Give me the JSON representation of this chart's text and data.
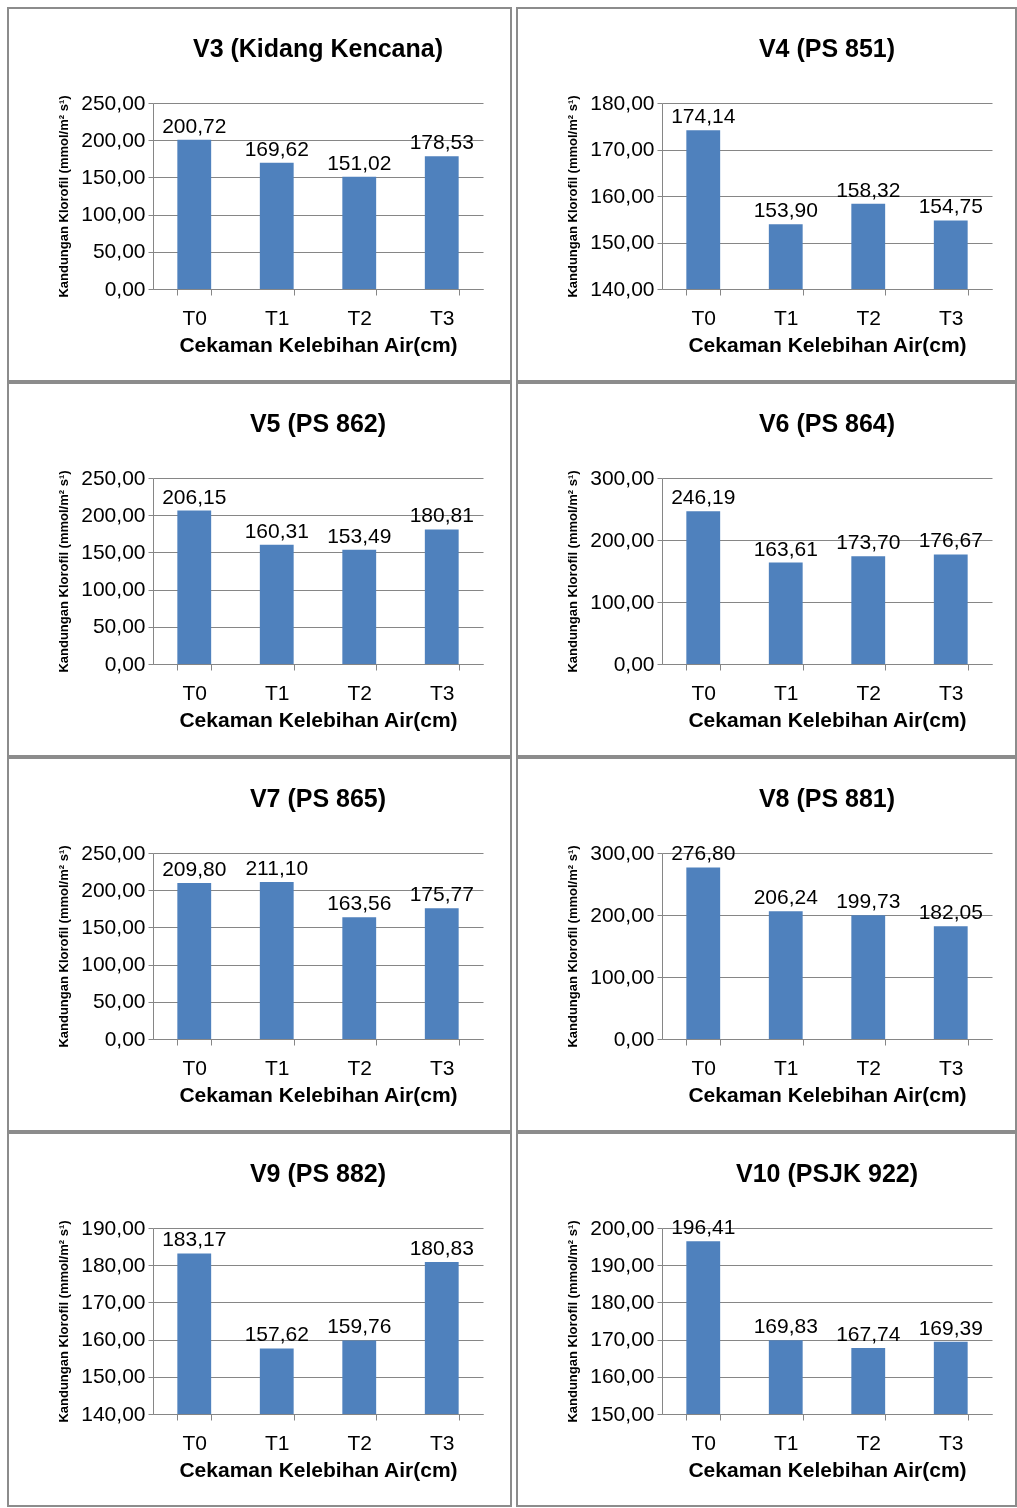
{
  "chart_data": [
    {
      "type": "bar",
      "title": "V3 (Kidang Kencana)",
      "xlabel": "Cekaman Kelebihan Air(cm)",
      "ylabel": "Kandungan Klorofil (mmol/m² s¹)",
      "categories": [
        "T0",
        "T1",
        "T2",
        "T3"
      ],
      "values": [
        200.72,
        169.62,
        151.02,
        178.53
      ],
      "value_labels": [
        "200,72",
        "169,62",
        "151,02",
        "178,53"
      ],
      "color": "#4f81bd",
      "ylim": [
        0,
        250
      ],
      "yticks": [
        {
          "value": 0,
          "label": "0,00"
        },
        {
          "value": 50,
          "label": "50,00"
        },
        {
          "value": 100,
          "label": "100,00"
        },
        {
          "value": 150,
          "label": "150,00"
        },
        {
          "value": 200,
          "label": "200,00"
        },
        {
          "value": 250,
          "label": "250,00"
        }
      ],
      "grid": "y"
    },
    {
      "type": "bar",
      "title": "V4 (PS 851)",
      "xlabel": "Cekaman Kelebihan Air(cm)",
      "ylabel": "Kandungan Klorofil (mmol/m² s¹)",
      "categories": [
        "T0",
        "T1",
        "T2",
        "T3"
      ],
      "values": [
        174.14,
        153.9,
        158.32,
        154.75
      ],
      "value_labels": [
        "174,14",
        "153,90",
        "158,32",
        "154,75"
      ],
      "color": "#4f81bd",
      "ylim": [
        140,
        180
      ],
      "yticks": [
        {
          "value": 140,
          "label": "140,00"
        },
        {
          "value": 150,
          "label": "150,00"
        },
        {
          "value": 160,
          "label": "160,00"
        },
        {
          "value": 170,
          "label": "170,00"
        },
        {
          "value": 180,
          "label": "180,00"
        }
      ],
      "grid": "y"
    },
    {
      "type": "bar",
      "title": "V5 (PS 862)",
      "xlabel": "Cekaman Kelebihan Air(cm)",
      "ylabel": "Kandungan Klorofil (mmol/m² s¹)",
      "categories": [
        "T0",
        "T1",
        "T2",
        "T3"
      ],
      "values": [
        206.15,
        160.31,
        153.49,
        180.81
      ],
      "value_labels": [
        "206,15",
        "160,31",
        "153,49",
        "180,81"
      ],
      "color": "#4f81bd",
      "ylim": [
        0,
        250
      ],
      "yticks": [
        {
          "value": 0,
          "label": "0,00"
        },
        {
          "value": 50,
          "label": "50,00"
        },
        {
          "value": 100,
          "label": "100,00"
        },
        {
          "value": 150,
          "label": "150,00"
        },
        {
          "value": 200,
          "label": "200,00"
        },
        {
          "value": 250,
          "label": "250,00"
        }
      ],
      "grid": "y"
    },
    {
      "type": "bar",
      "title": "V6 (PS 864)",
      "xlabel": "Cekaman Kelebihan Air(cm)",
      "ylabel": "Kandungan Klorofil (mmol/m² s¹)",
      "categories": [
        "T0",
        "T1",
        "T2",
        "T3"
      ],
      "values": [
        246.19,
        163.61,
        173.7,
        176.67
      ],
      "value_labels": [
        "246,19",
        "163,61",
        "173,70",
        "176,67"
      ],
      "color": "#4f81bd",
      "ylim": [
        0,
        300
      ],
      "yticks": [
        {
          "value": 0,
          "label": "0,00"
        },
        {
          "value": 100,
          "label": "100,00"
        },
        {
          "value": 200,
          "label": "200,00"
        },
        {
          "value": 300,
          "label": "300,00"
        }
      ],
      "grid": "y"
    },
    {
      "type": "bar",
      "title": "V7 (PS 865)",
      "xlabel": "Cekaman Kelebihan Air(cm)",
      "ylabel": "Kandungan Klorofil (mmol/m² s¹)",
      "categories": [
        "T0",
        "T1",
        "T2",
        "T3"
      ],
      "values": [
        209.8,
        211.1,
        163.56,
        175.77
      ],
      "value_labels": [
        "209,80",
        "211,10",
        "163,56",
        "175,77"
      ],
      "color": "#4f81bd",
      "ylim": [
        0,
        250
      ],
      "yticks": [
        {
          "value": 0,
          "label": "0,00"
        },
        {
          "value": 50,
          "label": "50,00"
        },
        {
          "value": 100,
          "label": "100,00"
        },
        {
          "value": 150,
          "label": "150,00"
        },
        {
          "value": 200,
          "label": "200,00"
        },
        {
          "value": 250,
          "label": "250,00"
        }
      ],
      "grid": "y"
    },
    {
      "type": "bar",
      "title": "V8 (PS 881)",
      "xlabel": "Cekaman Kelebihan Air(cm)",
      "ylabel": "Kandungan Klorofil (mmol/m² s¹)",
      "categories": [
        "T0",
        "T1",
        "T2",
        "T3"
      ],
      "values": [
        276.8,
        206.24,
        199.73,
        182.05
      ],
      "value_labels": [
        "276,80",
        "206,24",
        "199,73",
        "182,05"
      ],
      "color": "#4f81bd",
      "ylim": [
        0,
        300
      ],
      "yticks": [
        {
          "value": 0,
          "label": "0,00"
        },
        {
          "value": 100,
          "label": "100,00"
        },
        {
          "value": 200,
          "label": "200,00"
        },
        {
          "value": 300,
          "label": "300,00"
        }
      ],
      "grid": "y"
    },
    {
      "type": "bar",
      "title": "V9 (PS 882)",
      "xlabel": "Cekaman Kelebihan Air(cm)",
      "ylabel": "Kandungan Klorofil (mmol/m² s¹)",
      "categories": [
        "T0",
        "T1",
        "T2",
        "T3"
      ],
      "values": [
        183.17,
        157.62,
        159.76,
        180.83
      ],
      "value_labels": [
        "183,17",
        "157,62",
        "159,76",
        "180,83"
      ],
      "color": "#4f81bd",
      "ylim": [
        140,
        190
      ],
      "yticks": [
        {
          "value": 140,
          "label": "140,00"
        },
        {
          "value": 150,
          "label": "150,00"
        },
        {
          "value": 160,
          "label": "160,00"
        },
        {
          "value": 170,
          "label": "170,00"
        },
        {
          "value": 180,
          "label": "180,00"
        },
        {
          "value": 190,
          "label": "190,00"
        }
      ],
      "grid": "y"
    },
    {
      "type": "bar",
      "title": "V10 (PSJK 922)",
      "xlabel": "Cekaman Kelebihan Air(cm)",
      "ylabel": "Kandungan Klorofil (mmol/m² s¹)",
      "categories": [
        "T0",
        "T1",
        "T2",
        "T3"
      ],
      "values": [
        196.41,
        169.83,
        167.74,
        169.39
      ],
      "value_labels": [
        "196,41",
        "169,83",
        "167,74",
        "169,39"
      ],
      "color": "#4f81bd",
      "ylim": [
        150,
        200
      ],
      "yticks": [
        {
          "value": 150,
          "label": "150,00"
        },
        {
          "value": 160,
          "label": "160,00"
        },
        {
          "value": 170,
          "label": "170,00"
        },
        {
          "value": 180,
          "label": "180,00"
        },
        {
          "value": 190,
          "label": "190,00"
        },
        {
          "value": 200,
          "label": "200,00"
        }
      ],
      "grid": "y"
    }
  ]
}
